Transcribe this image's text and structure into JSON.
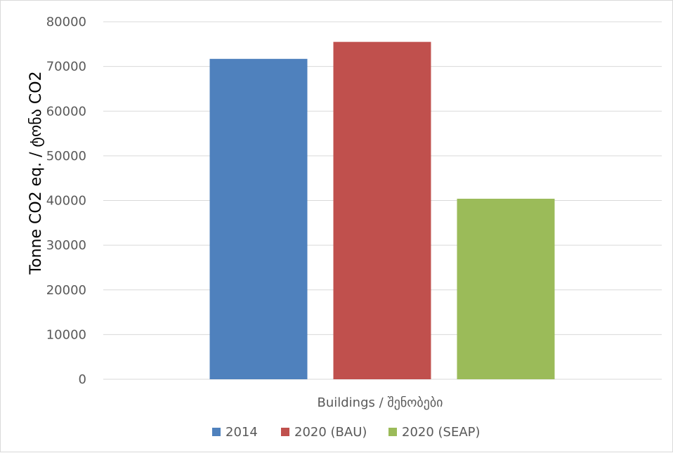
{
  "chart_data": {
    "type": "bar",
    "categories": [
      "Buildings / შენობები"
    ],
    "series": [
      {
        "name": "2014",
        "values": [
          71700
        ],
        "color": "#4f81bd"
      },
      {
        "name": "2020 (BAU)",
        "values": [
          75500
        ],
        "color": "#c0504d"
      },
      {
        "name": "2020 (SEAP)",
        "values": [
          40400
        ],
        "color": "#9bbb59"
      }
    ],
    "ylabel": "Tonne CO2 eq. / ტონა CO2",
    "xlabel": "",
    "ylim": [
      0,
      80000
    ],
    "yticks": [
      0,
      10000,
      20000,
      30000,
      40000,
      50000,
      60000,
      70000,
      80000
    ],
    "grid": true,
    "legend_position": "bottom"
  }
}
